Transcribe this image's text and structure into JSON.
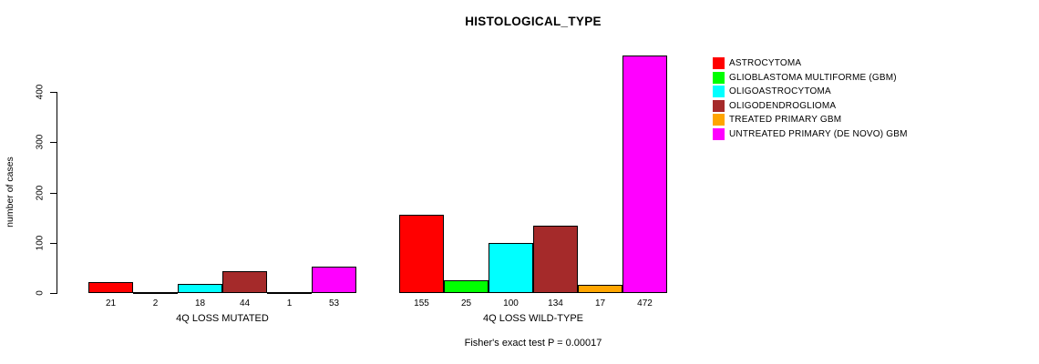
{
  "chart_data": {
    "type": "bar",
    "title": "HISTOLOGICAL_TYPE",
    "ylabel": "number of cases",
    "xlabel": "",
    "annotation": "Fisher's exact test P = 0.00017",
    "ylim": [
      0,
      480
    ],
    "yticks": [
      0,
      100,
      200,
      300,
      400
    ],
    "grid": false,
    "legend_position": "right",
    "categories": [
      "4Q LOSS MUTATED",
      "4Q LOSS WILD-TYPE"
    ],
    "series": [
      {
        "name": "ASTROCYTOMA",
        "color": "#FF0000",
        "values": [
          21,
          155
        ]
      },
      {
        "name": "GLIOBLASTOMA MULTIFORME (GBM)",
        "color": "#00FF00",
        "values": [
          2,
          25
        ]
      },
      {
        "name": "OLIGOASTROCYTOMA",
        "color": "#00FFFF",
        "values": [
          18,
          100
        ]
      },
      {
        "name": "OLIGODENDROGLIOMA",
        "color": "#A52A2A",
        "values": [
          44,
          134
        ]
      },
      {
        "name": "TREATED PRIMARY GBM",
        "color": "#FFA500",
        "values": [
          1,
          17
        ]
      },
      {
        "name": "UNTREATED PRIMARY (DE NOVO) GBM",
        "color": "#FF00FF",
        "values": [
          53,
          472
        ]
      }
    ]
  }
}
